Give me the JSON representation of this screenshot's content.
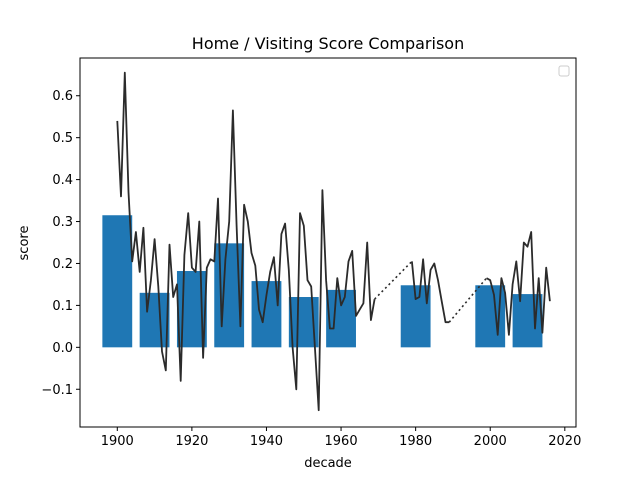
{
  "chart_data": {
    "type": "bar",
    "title": "Home / Visiting Score Comparison",
    "xlabel": "decade",
    "ylabel": "score",
    "xlim": [
      1890,
      2023
    ],
    "ylim": [
      -0.19,
      0.69
    ],
    "xticks": [
      1900,
      1920,
      1940,
      1960,
      1980,
      2000,
      2020
    ],
    "yticks": [
      -0.1,
      0.0,
      0.1,
      0.2,
      0.3,
      0.4,
      0.5,
      0.6
    ],
    "grid": false,
    "legend": {
      "placement": "top-right",
      "entries": []
    },
    "colors": {
      "bars": "#1f77b4",
      "line": "#2b2b2b"
    },
    "bars": {
      "width": 8,
      "x": [
        1900,
        1910,
        1920,
        1930,
        1940,
        1950,
        1960,
        1980,
        2000,
        2010
      ],
      "values": [
        0.315,
        0.13,
        0.182,
        0.248,
        0.158,
        0.12,
        0.137,
        0.148,
        0.148,
        0.127
      ]
    },
    "series": [
      {
        "style": "solid",
        "x": [
          1900,
          1901,
          1902,
          1903,
          1904,
          1905,
          1906,
          1907,
          1908,
          1909,
          1910,
          1911,
          1912,
          1913,
          1914,
          1915,
          1916,
          1917,
          1918,
          1919,
          1920,
          1921,
          1922,
          1923,
          1924,
          1925,
          1926,
          1927,
          1928,
          1929,
          1930,
          1931,
          1932,
          1933,
          1934,
          1935,
          1936,
          1937,
          1938,
          1939,
          1940,
          1941,
          1942,
          1943,
          1944,
          1945,
          1946,
          1947,
          1948,
          1949,
          1950,
          1951,
          1952,
          1953,
          1954,
          1955,
          1956,
          1957,
          1958,
          1959,
          1960,
          1961,
          1962,
          1963,
          1964,
          1965,
          1966,
          1967,
          1968,
          1969
        ],
        "y": [
          0.54,
          0.36,
          0.655,
          0.37,
          0.205,
          0.275,
          0.18,
          0.285,
          0.085,
          0.16,
          0.258,
          0.145,
          -0.01,
          -0.055,
          0.245,
          0.12,
          0.15,
          -0.08,
          0.22,
          0.32,
          0.19,
          0.18,
          0.3,
          -0.025,
          0.19,
          0.21,
          0.205,
          0.355,
          0.05,
          0.21,
          0.3,
          0.565,
          0.29,
          0.05,
          0.34,
          0.3,
          0.225,
          0.195,
          0.09,
          0.06,
          0.125,
          0.18,
          0.215,
          0.1,
          0.27,
          0.295,
          0.185,
          0.0,
          -0.1,
          0.32,
          0.29,
          0.16,
          0.145,
          0.0,
          -0.15,
          0.375,
          0.16,
          0.045,
          0.045,
          0.165,
          0.1,
          0.12,
          0.205,
          0.23,
          0.075,
          0.09,
          0.105,
          0.25,
          0.065,
          0.115
        ]
      },
      {
        "style": "dotted",
        "x": [
          1969,
          1979
        ],
        "y": [
          0.115,
          0.205
        ]
      },
      {
        "style": "solid",
        "x": [
          1979,
          1980,
          1981,
          1982,
          1983,
          1984,
          1985,
          1986,
          1987,
          1988,
          1989
        ],
        "y": [
          0.205,
          0.115,
          0.12,
          0.21,
          0.105,
          0.185,
          0.2,
          0.16,
          0.11,
          0.06,
          0.06
        ]
      },
      {
        "style": "dotted",
        "x": [
          1989,
          1999
        ],
        "y": [
          0.06,
          0.165
        ]
      },
      {
        "style": "solid",
        "x": [
          1999,
          2000,
          2001,
          2002,
          2003,
          2004,
          2005,
          2006,
          2007,
          2008,
          2009,
          2010,
          2011,
          2012,
          2013,
          2014,
          2015,
          2016
        ],
        "y": [
          0.165,
          0.16,
          0.125,
          0.03,
          0.165,
          0.13,
          0.03,
          0.15,
          0.205,
          0.11,
          0.25,
          0.24,
          0.275,
          0.045,
          0.165,
          0.035,
          0.19,
          0.11
        ]
      }
    ]
  }
}
